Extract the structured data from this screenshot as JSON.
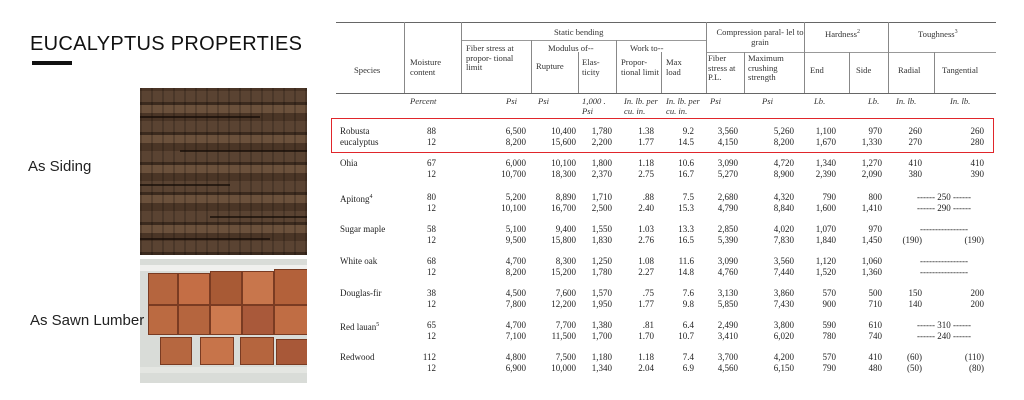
{
  "title": "EUCALYPTUS PROPERTIES",
  "captions": {
    "siding": "As Siding",
    "lumber": "As Sawn Lumber"
  },
  "headers": {
    "species": "Species",
    "moisture": "Moisture content",
    "static_bending": "Static bending",
    "fiber_stress": "Fiber stress at propor- tional limit",
    "modulus_of": "Modulus of--",
    "rupture": "Rupture",
    "elasticity": "Elas- ticity",
    "work_to": "Work to--",
    "proportional_limit": "Propor- tional limit",
    "max_load": "Max load",
    "compression": "Compression paral- lel to grain",
    "comp_fiber_stress": "Fiber stress at P.L.",
    "max_crushing": "Maximum crushing strength",
    "hardness": "Hardness",
    "hardness_note": "2",
    "end": "End",
    "side": "Side",
    "toughness": "Toughness",
    "toughness_note": "3",
    "radial": "Radial",
    "tangential": "Tangential"
  },
  "units": [
    "Percent",
    "Psi",
    "Psi",
    "1,000 . Psi",
    "In. lb. per cu. in.",
    "In. lb. per cu. in.",
    "Psi",
    "Psi",
    "Lb.",
    "Lb.",
    "In. lb.",
    "In. lb."
  ],
  "rows": [
    {
      "species": "Robusta eucalyptus",
      "note": "",
      "highlight": true,
      "lines": [
        [
          "88",
          "6,500",
          "10,400",
          "1,780",
          "1.38",
          "9.2",
          "3,560",
          "5,260",
          "1,100",
          "970",
          "260",
          "260"
        ],
        [
          "12",
          "8,200",
          "15,600",
          "2,200",
          "1.77",
          "14.5",
          "4,150",
          "8,200",
          "1,670",
          "1,330",
          "270",
          "280"
        ]
      ]
    },
    {
      "species": "Ohia",
      "note": "",
      "lines": [
        [
          "67",
          "6,000",
          "10,100",
          "1,800",
          "1.18",
          "10.6",
          "3,090",
          "4,720",
          "1,340",
          "1,270",
          "410",
          "410"
        ],
        [
          "12",
          "10,700",
          "18,300",
          "2,370",
          "2.75",
          "16.7",
          "5,270",
          "8,900",
          "2,390",
          "2,090",
          "380",
          "390"
        ]
      ]
    },
    {
      "species": "Apitong",
      "note": "4",
      "lines": [
        [
          "80",
          "5,200",
          "8,890",
          "1,710",
          ".88",
          "7.5",
          "2,680",
          "4,320",
          "790",
          "800",
          "------ 250 ------",
          ""
        ],
        [
          "12",
          "10,100",
          "16,700",
          "2,500",
          "2.40",
          "15.3",
          "4,790",
          "8,840",
          "1,600",
          "1,410",
          "------ 290 ------",
          ""
        ]
      ]
    },
    {
      "species": "Sugar maple",
      "note": "",
      "lines": [
        [
          "58",
          "5,100",
          "9,400",
          "1,550",
          "1.03",
          "13.3",
          "2,850",
          "4,020",
          "1,070",
          "970",
          "----------------",
          ""
        ],
        [
          "12",
          "9,500",
          "15,800",
          "1,830",
          "2.76",
          "16.5",
          "5,390",
          "7,830",
          "1,840",
          "1,450",
          "(190)",
          "(190)"
        ]
      ]
    },
    {
      "species": "White oak",
      "note": "",
      "lines": [
        [
          "68",
          "4,700",
          "8,300",
          "1,250",
          "1.08",
          "11.6",
          "3,090",
          "3,560",
          "1,120",
          "1,060",
          "----------------",
          ""
        ],
        [
          "12",
          "8,200",
          "15,200",
          "1,780",
          "2.27",
          "14.8",
          "4,760",
          "7,440",
          "1,520",
          "1,360",
          "----------------",
          ""
        ]
      ]
    },
    {
      "species": "Douglas-fir",
      "note": "",
      "lines": [
        [
          "38",
          "4,500",
          "7,600",
          "1,570",
          ".75",
          "7.6",
          "3,130",
          "3,860",
          "570",
          "500",
          "150",
          "200"
        ],
        [
          "12",
          "7,800",
          "12,200",
          "1,950",
          "1.77",
          "9.8",
          "5,850",
          "7,430",
          "900",
          "710",
          "140",
          "200"
        ]
      ]
    },
    {
      "species": "Red lauan",
      "note": "5",
      "lines": [
        [
          "65",
          "4,700",
          "7,700",
          "1,380",
          ".81",
          "6.4",
          "2,490",
          "3,800",
          "590",
          "610",
          "------ 310 ------",
          ""
        ],
        [
          "12",
          "7,100",
          "11,500",
          "1,700",
          "1.70",
          "10.7",
          "3,410",
          "6,020",
          "780",
          "740",
          "------ 240 ------",
          ""
        ]
      ]
    },
    {
      "species": "Redwood",
      "note": "",
      "lines": [
        [
          "112",
          "4,800",
          "7,500",
          "1,180",
          "1.18",
          "7.4",
          "3,700",
          "4,200",
          "570",
          "410",
          "(60)",
          "(110)"
        ],
        [
          "12",
          "6,900",
          "10,000",
          "1,340",
          "2.04",
          "6.9",
          "4,560",
          "6,150",
          "790",
          "480",
          "(50)",
          "(80)"
        ]
      ]
    }
  ]
}
